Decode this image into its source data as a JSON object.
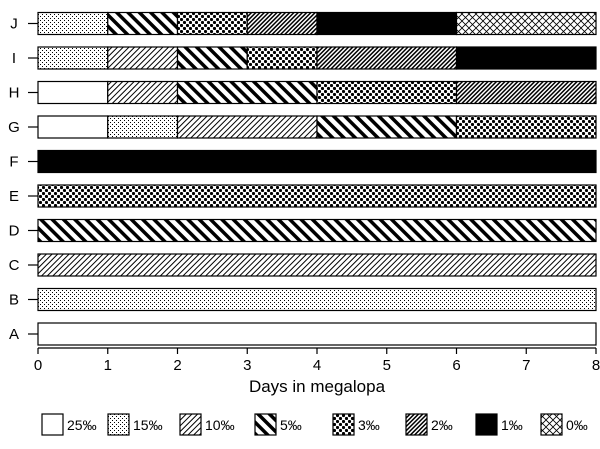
{
  "chart_data": {
    "type": "bar",
    "orientation": "horizontal",
    "stacked": true,
    "xlabel": "Days in megalopa",
    "xlim": [
      0,
      8
    ],
    "xticks": [
      0,
      1,
      2,
      3,
      4,
      5,
      6,
      7,
      8
    ],
    "grid": false,
    "legend_position": "bottom",
    "categories": [
      "A",
      "B",
      "C",
      "D",
      "E",
      "F",
      "G",
      "H",
      "I",
      "J"
    ],
    "legend": [
      {
        "label": "25‰",
        "pattern": "white"
      },
      {
        "label": "15‰",
        "pattern": "dots"
      },
      {
        "label": "10‰",
        "pattern": "thin-diagonal"
      },
      {
        "label": "5‰",
        "pattern": "thick-diagonal"
      },
      {
        "label": "3‰",
        "pattern": "checker"
      },
      {
        "label": "2‰",
        "pattern": "dense-diagonal"
      },
      {
        "label": "1‰",
        "pattern": "black"
      },
      {
        "label": "0‰",
        "pattern": "crosshatch"
      }
    ],
    "rows": [
      {
        "category": "A",
        "segments": [
          {
            "salinity": "25‰",
            "start": 0,
            "end": 8
          }
        ]
      },
      {
        "category": "B",
        "segments": [
          {
            "salinity": "15‰",
            "start": 0,
            "end": 8
          }
        ]
      },
      {
        "category": "C",
        "segments": [
          {
            "salinity": "10‰",
            "start": 0,
            "end": 8
          }
        ]
      },
      {
        "category": "D",
        "segments": [
          {
            "salinity": "5‰",
            "start": 0,
            "end": 8
          }
        ]
      },
      {
        "category": "E",
        "segments": [
          {
            "salinity": "3‰",
            "start": 0,
            "end": 8
          }
        ]
      },
      {
        "category": "F",
        "segments": [
          {
            "salinity": "1‰",
            "start": 0,
            "end": 8
          }
        ]
      },
      {
        "category": "G",
        "segments": [
          {
            "salinity": "25‰",
            "start": 0,
            "end": 1
          },
          {
            "salinity": "15‰",
            "start": 1,
            "end": 2
          },
          {
            "salinity": "10‰",
            "start": 2,
            "end": 4
          },
          {
            "salinity": "5‰",
            "start": 4,
            "end": 6
          },
          {
            "salinity": "3‰",
            "start": 6,
            "end": 8
          }
        ]
      },
      {
        "category": "H",
        "segments": [
          {
            "salinity": "25‰",
            "start": 0,
            "end": 1
          },
          {
            "salinity": "10‰",
            "start": 1,
            "end": 2
          },
          {
            "salinity": "5‰",
            "start": 2,
            "end": 4
          },
          {
            "salinity": "3‰",
            "start": 4,
            "end": 6
          },
          {
            "salinity": "2‰",
            "start": 6,
            "end": 8
          }
        ]
      },
      {
        "category": "I",
        "segments": [
          {
            "salinity": "15‰",
            "start": 0,
            "end": 1
          },
          {
            "salinity": "10‰",
            "start": 1,
            "end": 2
          },
          {
            "salinity": "5‰",
            "start": 2,
            "end": 3
          },
          {
            "salinity": "3‰",
            "start": 3,
            "end": 4
          },
          {
            "salinity": "2‰",
            "start": 4,
            "end": 6
          },
          {
            "salinity": "1‰",
            "start": 6,
            "end": 8
          }
        ]
      },
      {
        "category": "J",
        "segments": [
          {
            "salinity": "15‰",
            "start": 0,
            "end": 1
          },
          {
            "salinity": "5‰",
            "start": 1,
            "end": 2
          },
          {
            "salinity": "3‰",
            "start": 2,
            "end": 3
          },
          {
            "salinity": "2‰",
            "start": 3,
            "end": 4
          },
          {
            "salinity": "1‰",
            "start": 4,
            "end": 6
          },
          {
            "salinity": "0‰",
            "start": 6,
            "end": 8
          }
        ]
      }
    ]
  }
}
